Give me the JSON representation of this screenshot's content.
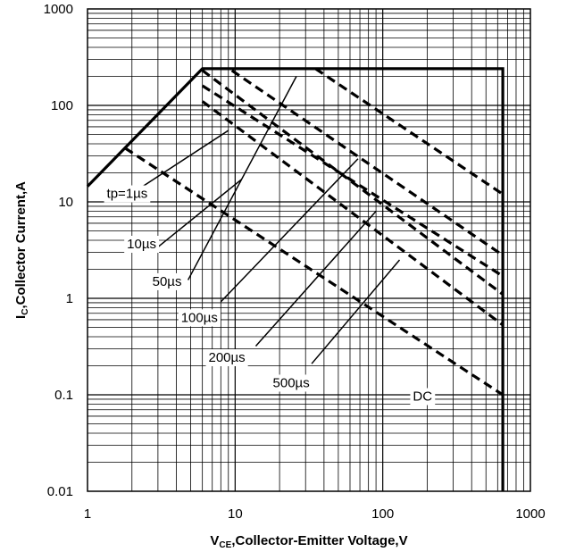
{
  "chart_data": {
    "type": "line",
    "x_scale": "log",
    "y_scale": "log",
    "xlim": [
      1,
      1000
    ],
    "ylim": [
      0.01,
      1000
    ],
    "grid": true,
    "xlabel": {
      "main": "V",
      "sub": "CE",
      "rest": ",Collector-Emitter Voltage,V"
    },
    "ylabel": {
      "main": "I",
      "sub": "C",
      "rest": ",Collector Current,A"
    },
    "x_ticks": [
      {
        "value": 1,
        "label": "1"
      },
      {
        "value": 10,
        "label": "10"
      },
      {
        "value": 100,
        "label": "100"
      },
      {
        "value": 1000,
        "label": "1000"
      }
    ],
    "y_ticks": [
      {
        "value": 0.01,
        "label": "0.01"
      },
      {
        "value": 0.1,
        "label": "0.1"
      },
      {
        "value": 1,
        "label": "1"
      },
      {
        "value": 10,
        "label": "10"
      },
      {
        "value": 100,
        "label": "100"
      },
      {
        "value": 1000,
        "label": "1000"
      }
    ],
    "series": [
      {
        "label": "tp=1µs",
        "style": "solid",
        "points": [
          [
            1,
            14.5
          ],
          [
            6,
            240
          ],
          [
            650,
            240
          ],
          [
            650,
            0.01
          ]
        ]
      },
      {
        "label": "10µs",
        "style": "dashed",
        "points": [
          [
            6,
            230
          ],
          [
            650,
            1.1
          ]
        ]
      },
      {
        "label": "50µs",
        "style": "dashed",
        "points": [
          [
            6,
            110
          ],
          [
            650,
            0.53
          ]
        ]
      },
      {
        "label": "100µs",
        "style": "dashed",
        "points": [
          [
            9.5,
            230
          ],
          [
            650,
            2.8
          ]
        ]
      },
      {
        "label": "200µs",
        "style": "dashed",
        "points": [
          [
            6,
            160
          ],
          [
            650,
            1.7
          ]
        ]
      },
      {
        "label": "500µs",
        "style": "dashed",
        "points": [
          [
            35,
            240
          ],
          [
            650,
            12
          ]
        ]
      },
      {
        "label": "DC",
        "style": "dashed",
        "points": [
          [
            1.8,
            36
          ],
          [
            650,
            0.1
          ]
        ]
      }
    ],
    "annotations": [
      {
        "text": "tp=1µs",
        "x": 1.35,
        "y": 11,
        "leader": [
          [
            1.8,
            11
          ],
          [
            9,
            55
          ]
        ]
      },
      {
        "text": "10µs",
        "x": 1.85,
        "y": 3.3,
        "leader": [
          [
            3,
            3.4
          ],
          [
            11,
            17
          ]
        ]
      },
      {
        "text": "50µs",
        "x": 2.75,
        "y": 1.35,
        "leader": [
          [
            4.8,
            1.55
          ],
          [
            26,
            200
          ]
        ]
      },
      {
        "text": "100µs",
        "x": 4.3,
        "y": 0.57,
        "leader": [
          [
            8,
            0.92
          ],
          [
            68,
            28
          ]
        ]
      },
      {
        "text": "200µs",
        "x": 6.6,
        "y": 0.22,
        "leader": [
          [
            13.8,
            0.32
          ],
          [
            90,
            8
          ]
        ]
      },
      {
        "text": "500µs",
        "x": 18,
        "y": 0.12,
        "leader": [
          [
            33,
            0.21
          ],
          [
            130,
            2.5
          ]
        ]
      },
      {
        "text": "DC",
        "x": 160,
        "y": 0.087,
        "leader": null
      }
    ]
  }
}
